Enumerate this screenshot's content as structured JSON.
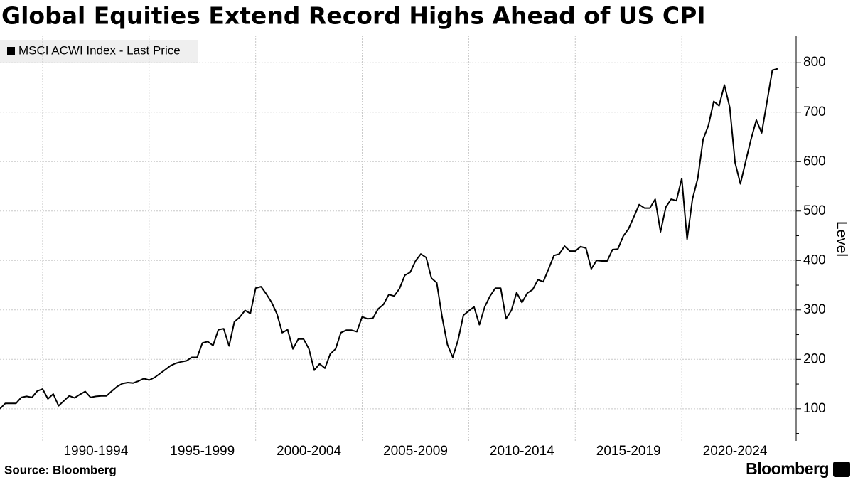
{
  "chart_data": {
    "type": "line",
    "title": "Global Equities Extend Record Highs Ahead of US CPI",
    "source": "Source: Bloomberg",
    "brand": "Bloomberg",
    "ylabel": "Level",
    "grid": true,
    "legend": "top-left",
    "xlim": [
      1988,
      2025.1
    ],
    "ylim": [
      35,
      855
    ],
    "yticks": [
      100,
      200,
      300,
      400,
      500,
      600,
      700,
      800
    ],
    "yminor": [
      50,
      150,
      250,
      350,
      450,
      550,
      650,
      750,
      850
    ],
    "xgrid": [
      1990,
      1995,
      2000,
      2005,
      2010,
      2015,
      2020
    ],
    "xticks": [
      {
        "value": 1992.5,
        "label": "1990-1994"
      },
      {
        "value": 1997.5,
        "label": "1995-1999"
      },
      {
        "value": 2002.5,
        "label": "2000-2004"
      },
      {
        "value": 2007.5,
        "label": "2005-2009"
      },
      {
        "value": 2012.5,
        "label": "2010-2014"
      },
      {
        "value": 2017.5,
        "label": "2015-2019"
      },
      {
        "value": 2022.5,
        "label": "2020-2024"
      }
    ],
    "series": [
      {
        "name": "MSCI ACWI Index - Last Price",
        "color": "#000000",
        "x": [
          1988,
          1988.25,
          1988.5,
          1988.75,
          1989,
          1989.25,
          1989.5,
          1989.75,
          1990,
          1990.25,
          1990.5,
          1990.75,
          1991,
          1991.25,
          1991.5,
          1991.75,
          1992,
          1992.25,
          1992.5,
          1992.75,
          1993,
          1993.25,
          1993.5,
          1993.75,
          1994,
          1994.25,
          1994.5,
          1994.75,
          1995,
          1995.25,
          1995.5,
          1995.75,
          1996,
          1996.25,
          1996.5,
          1996.75,
          1997,
          1997.25,
          1997.5,
          1997.75,
          1998,
          1998.25,
          1998.5,
          1998.75,
          1999,
          1999.25,
          1999.5,
          1999.75,
          2000,
          2000.25,
          2000.5,
          2000.75,
          2001,
          2001.25,
          2001.5,
          2001.75,
          2002,
          2002.25,
          2002.5,
          2002.75,
          2003,
          2003.25,
          2003.5,
          2003.75,
          2004,
          2004.25,
          2004.5,
          2004.75,
          2005,
          2005.25,
          2005.5,
          2005.75,
          2006,
          2006.25,
          2006.5,
          2006.75,
          2007,
          2007.25,
          2007.5,
          2007.75,
          2008,
          2008.25,
          2008.5,
          2008.75,
          2009,
          2009.25,
          2009.5,
          2009.75,
          2010,
          2010.25,
          2010.5,
          2010.75,
          2011,
          2011.25,
          2011.5,
          2011.75,
          2012,
          2012.25,
          2012.5,
          2012.75,
          2013,
          2013.25,
          2013.5,
          2013.75,
          2014,
          2014.25,
          2014.5,
          2014.75,
          2015,
          2015.25,
          2015.5,
          2015.75,
          2016,
          2016.25,
          2016.5,
          2016.75,
          2017,
          2017.25,
          2017.5,
          2017.75,
          2018,
          2018.25,
          2018.5,
          2018.75,
          2019,
          2019.25,
          2019.5,
          2019.75,
          2020,
          2020.25,
          2020.5,
          2020.75,
          2021,
          2021.25,
          2021.5,
          2021.75,
          2022,
          2022.25,
          2022.5,
          2022.75,
          2023,
          2023.25,
          2023.5,
          2023.75,
          2024,
          2024.25,
          2024.5
        ],
        "values": [
          100,
          111,
          111,
          111,
          123,
          125,
          123,
          136,
          140,
          120,
          130,
          106,
          116,
          126,
          122,
          129,
          135,
          123,
          125,
          126,
          126,
          136,
          145,
          151,
          153,
          152,
          156,
          161,
          158,
          163,
          171,
          179,
          187,
          192,
          195,
          197,
          204,
          204,
          233,
          236,
          228,
          260,
          262,
          227,
          276,
          285,
          299,
          293,
          344,
          347,
          332,
          315,
          292,
          254,
          260,
          221,
          241,
          241,
          221,
          178,
          191,
          182,
          211,
          221,
          254,
          259,
          259,
          256,
          286,
          282,
          283,
          302,
          311,
          331,
          328,
          343,
          370,
          376,
          399,
          413,
          406,
          364,
          355,
          286,
          230,
          204,
          239,
          289,
          298,
          306,
          270,
          306,
          328,
          344,
          344,
          282,
          299,
          335,
          315,
          334,
          341,
          361,
          357,
          383,
          410,
          413,
          429,
          419,
          419,
          428,
          425,
          383,
          400,
          399,
          399,
          422,
          423,
          449,
          464,
          488,
          513,
          506,
          506,
          524,
          458,
          508,
          524,
          521,
          566,
          443,
          524,
          566,
          645,
          673,
          722,
          713,
          755,
          710,
          598,
          555,
          601,
          645,
          684,
          658,
          721,
          785,
          788
        ]
      }
    ]
  }
}
